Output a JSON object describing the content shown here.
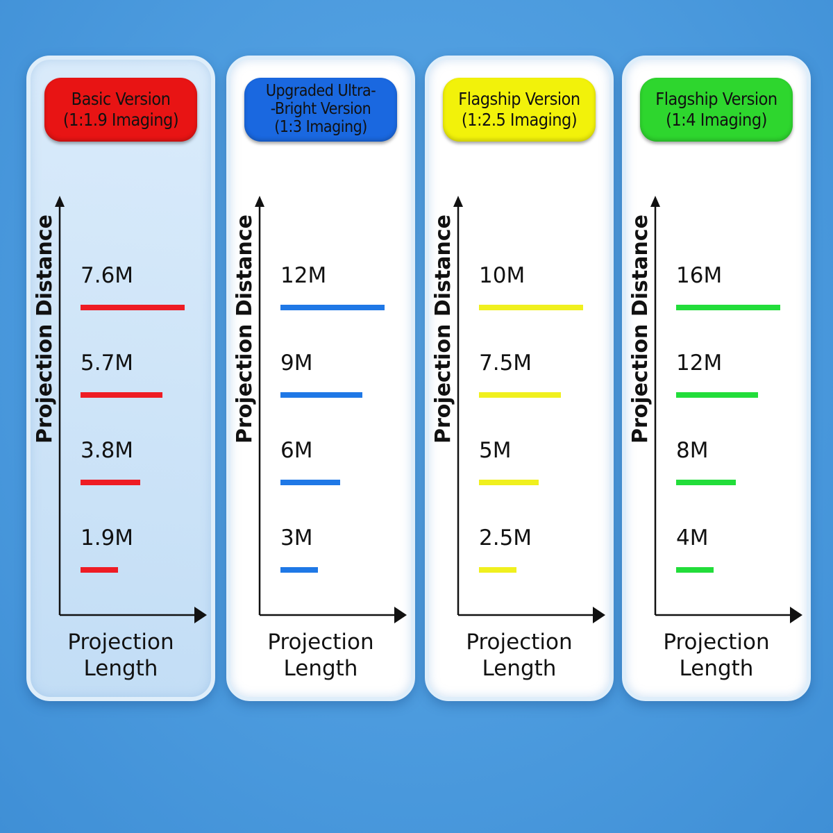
{
  "chart_data": [
    {
      "type": "bar",
      "title": "Basic Version\n(1:1.9 Imaging)",
      "xlabel": "Projection\nLength",
      "ylabel": "Projection Distance",
      "categories": [
        "7.6M",
        "5.7M",
        "3.8M",
        "1.9M"
      ],
      "values": [
        4,
        3,
        2,
        1
      ],
      "colors": {
        "badge": "#e81414",
        "bar": "#ee1c24"
      }
    },
    {
      "type": "bar",
      "title": "Upgraded Ultra-\n-Bright Version\n(1:3 Imaging)",
      "xlabel": "Projection\nLength",
      "ylabel": "Projection Distance",
      "categories": [
        "12M",
        "9M",
        "6M",
        "3M"
      ],
      "values": [
        4,
        3,
        2,
        1
      ],
      "colors": {
        "badge": "#1a68e0",
        "bar": "#1f78e6"
      }
    },
    {
      "type": "bar",
      "title": "Flagship Version\n(1:2.5 Imaging)",
      "xlabel": "Projection\nLength",
      "ylabel": "Projection Distance",
      "categories": [
        "10M",
        "7.5M",
        "5M",
        "2.5M"
      ],
      "values": [
        4,
        3,
        2,
        1
      ],
      "colors": {
        "badge": "#f2f20a",
        "bar": "#f0f01e"
      }
    },
    {
      "type": "bar",
      "title": "Flagship Version\n(1:4 Imaging)",
      "xlabel": "Projection\nLength",
      "ylabel": "Projection Distance",
      "categories": [
        "16M",
        "12M",
        "8M",
        "4M"
      ],
      "values": [
        4,
        3,
        2,
        1
      ],
      "colors": {
        "badge": "#2ed62e",
        "bar": "#22dd3a"
      }
    }
  ]
}
